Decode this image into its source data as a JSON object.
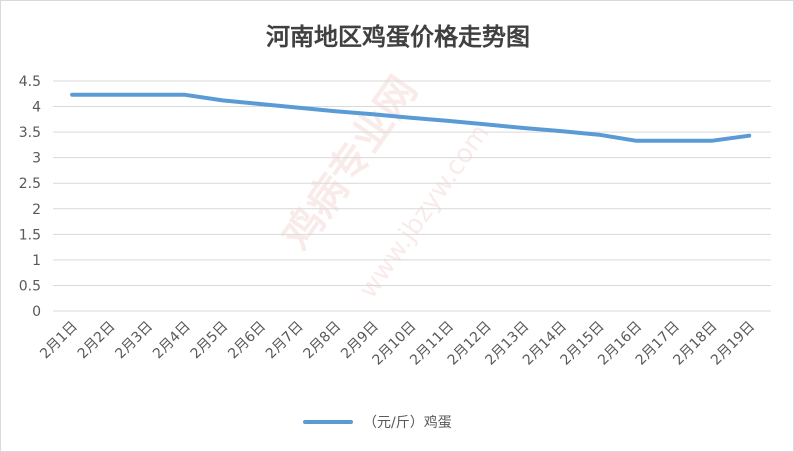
{
  "chart_data": {
    "type": "line",
    "title": "河南地区鸡蛋价格走势图",
    "categories": [
      "2月1日",
      "2月2日",
      "2月3日",
      "2月4日",
      "2月5日",
      "2月6日",
      "2月7日",
      "2月8日",
      "2月9日",
      "2月10日",
      "2月11日",
      "2月12日",
      "2月13日",
      "2月14日",
      "2月15日",
      "2月16日",
      "2月17日",
      "2月18日",
      "2月19日"
    ],
    "series": [
      {
        "name": "（元/斤）鸡蛋",
        "values": [
          4.23,
          4.23,
          4.23,
          4.23,
          4.12,
          4.05,
          3.98,
          3.91,
          3.85,
          3.78,
          3.72,
          3.65,
          3.58,
          3.52,
          3.45,
          3.33,
          3.33,
          3.33,
          3.43
        ]
      }
    ],
    "ylim": [
      0,
      4.5
    ],
    "yticks": [
      "0",
      "0.5",
      "1",
      "1.5",
      "2",
      "2.5",
      "3",
      "3.5",
      "4",
      "4.5"
    ],
    "grid": true,
    "legend_position": "bottom",
    "line_color": "#5b9bd5",
    "watermark_text": "鸡病专业网",
    "watermark_url": "www.jbzyw.com"
  }
}
